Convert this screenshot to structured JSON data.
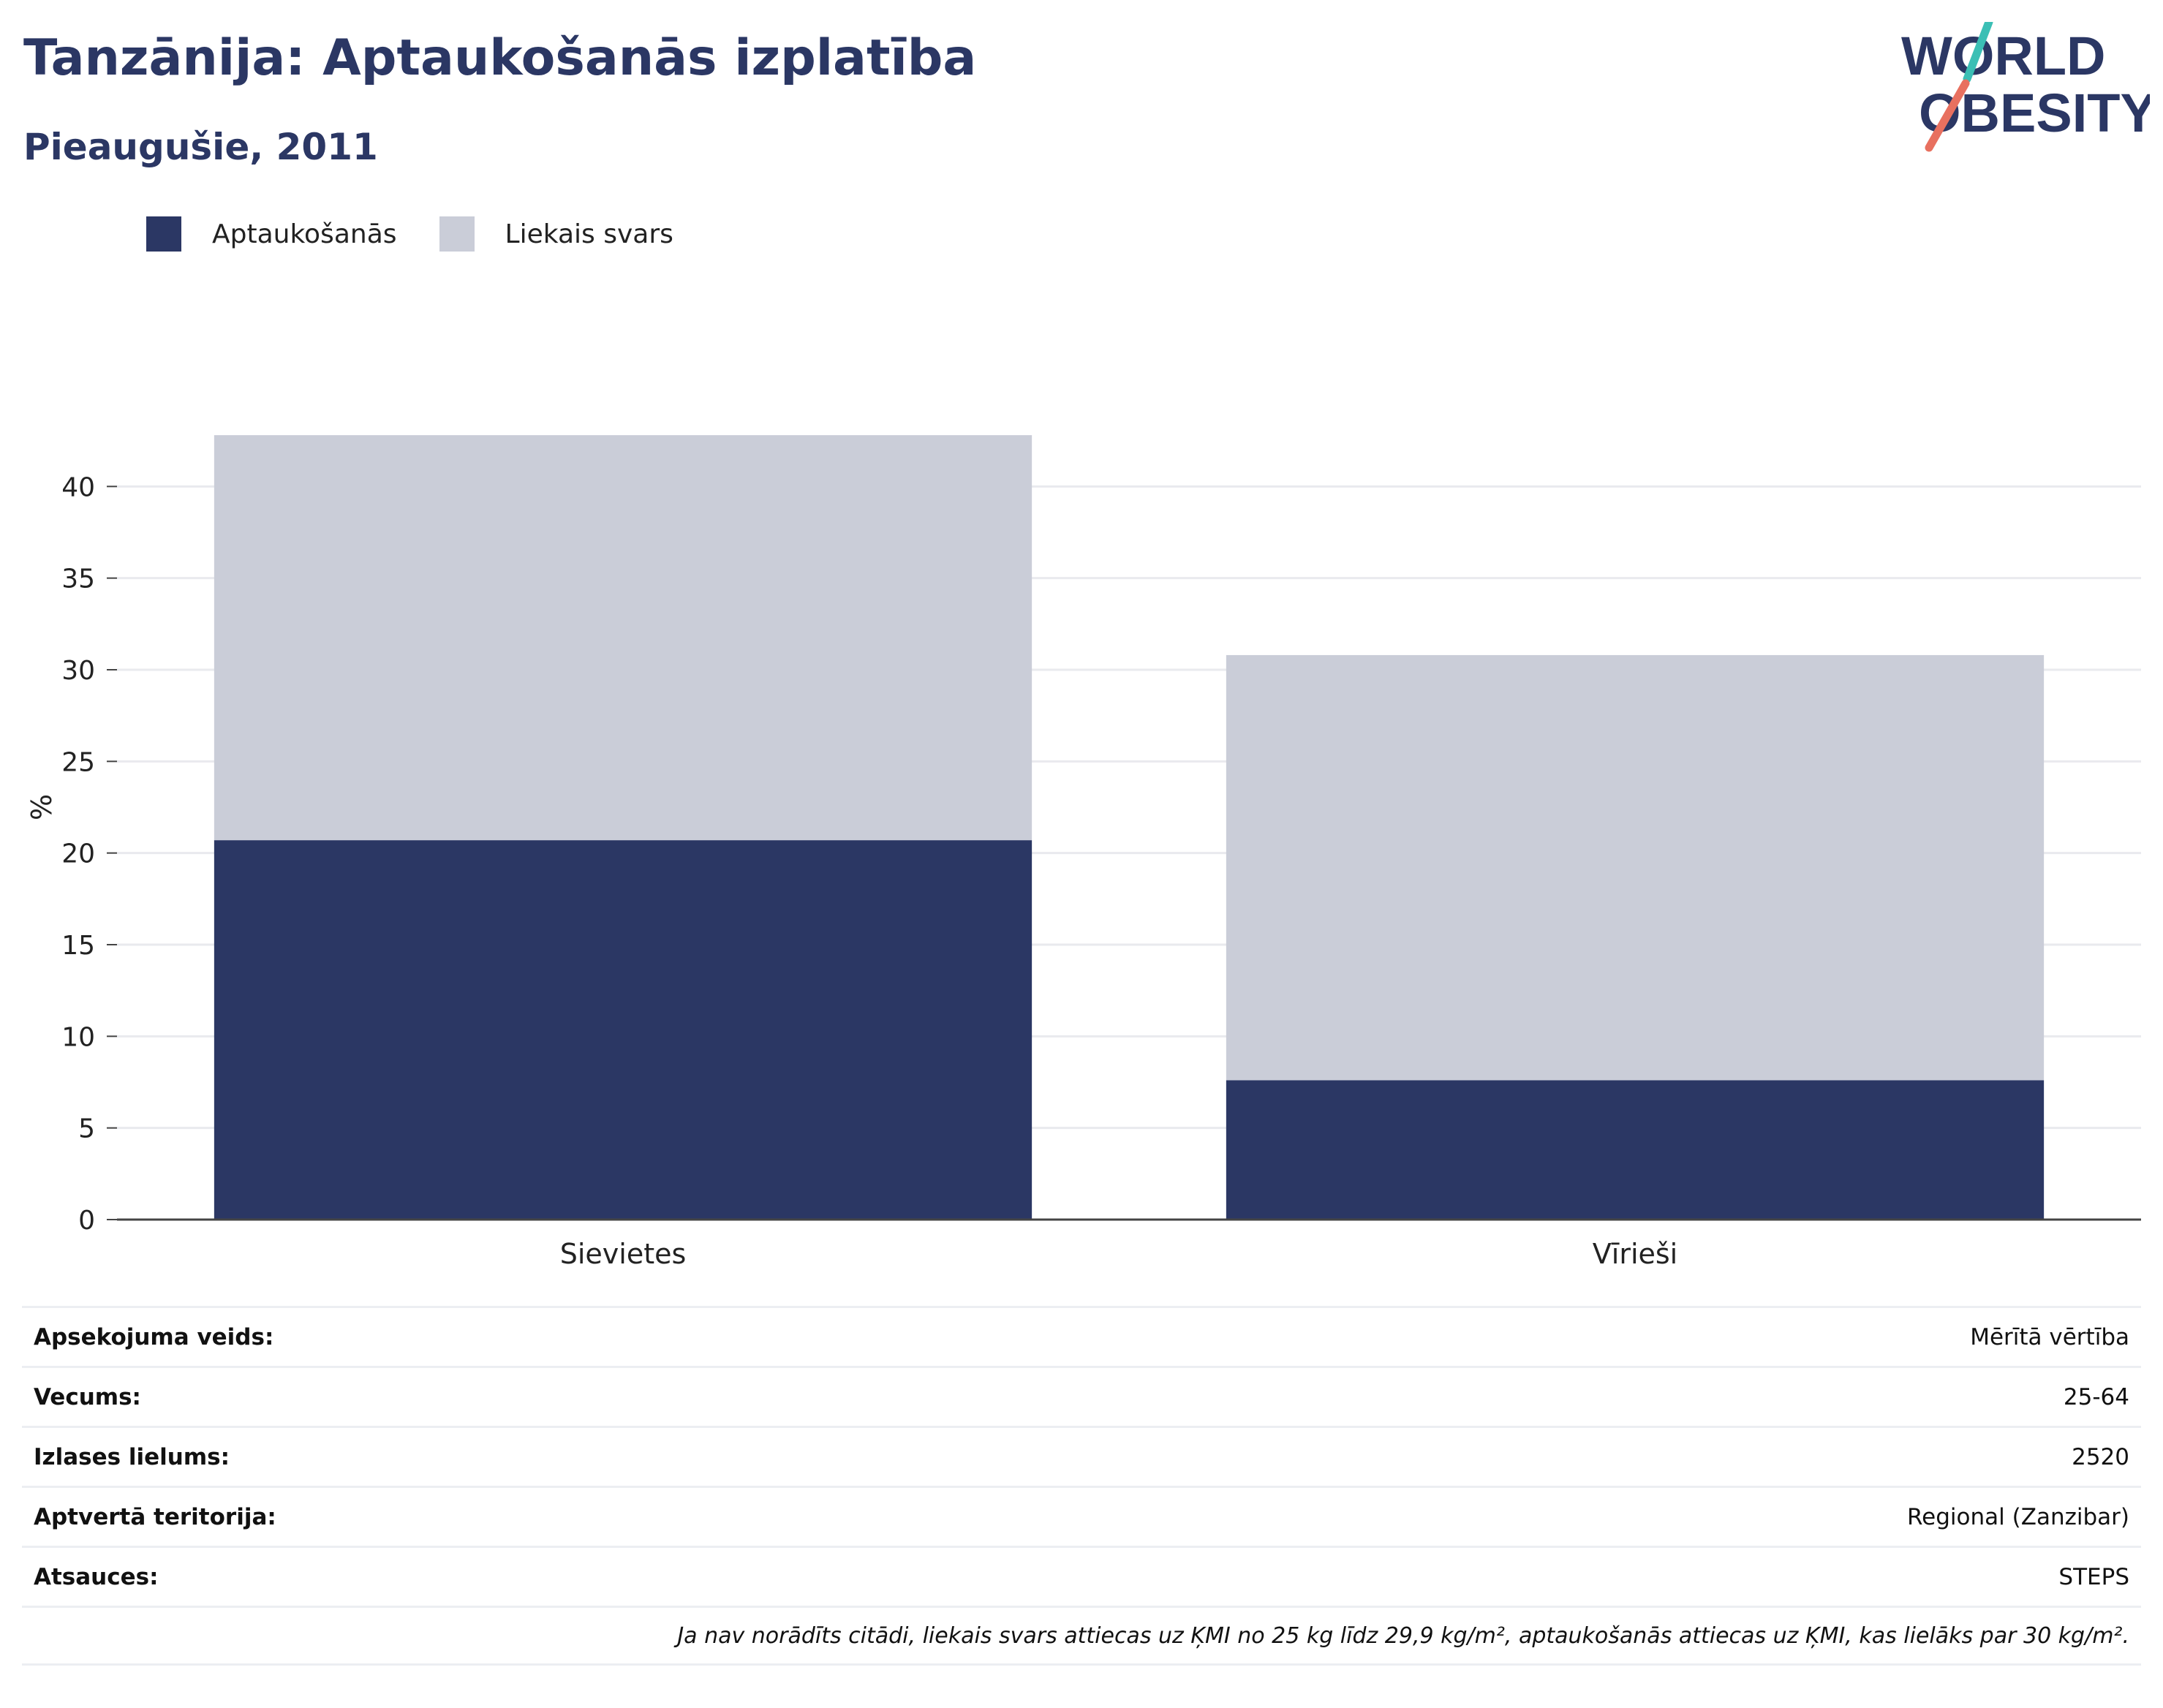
{
  "header": {
    "title": "Tanzānija: Aptaukošanās izplatība",
    "subtitle": "Pieaugušie, 2011"
  },
  "logo": {
    "line1": "WORLD",
    "line2": "OBESITY",
    "name": "world-obesity-logo"
  },
  "legend": [
    {
      "label": "Aptaukošanās",
      "color": "#2b3764"
    },
    {
      "label": "Liekais svars",
      "color": "#cacdd8"
    }
  ],
  "chart_data": {
    "type": "bar",
    "stacked": true,
    "categories": [
      "Sievietes",
      "Vīrieši"
    ],
    "series": [
      {
        "name": "Aptaukošanās",
        "values": [
          20.7,
          7.6
        ],
        "color": "#2b3764"
      },
      {
        "name": "Liekais svars",
        "values": [
          22.1,
          23.2
        ],
        "color": "#cacdd8"
      }
    ],
    "xlabel": "",
    "ylabel": "%",
    "ylim": [
      0,
      45
    ],
    "yticks": [
      0,
      5,
      10,
      15,
      20,
      25,
      30,
      35,
      40
    ],
    "grid": true,
    "legend_position": "top-left"
  },
  "info": {
    "rows": [
      {
        "key": "Apsekojuma veids:",
        "value": "Mērītā vērtība"
      },
      {
        "key": "Vecums:",
        "value": "25-64"
      },
      {
        "key": "Izlases lielums:",
        "value": "2520"
      },
      {
        "key": "Aptvertā teritorija:",
        "value": "Regional (Zanzibar)"
      },
      {
        "key": "Atsauces:",
        "value": "STEPS"
      }
    ],
    "note": "Ja nav norādīts citādi, liekais svars attiecas uz ĶMI no 25 kg līdz 29,9 kg/m², aptaukošanās attiecas uz ĶMI, kas lielāks par 30 kg/m²."
  }
}
